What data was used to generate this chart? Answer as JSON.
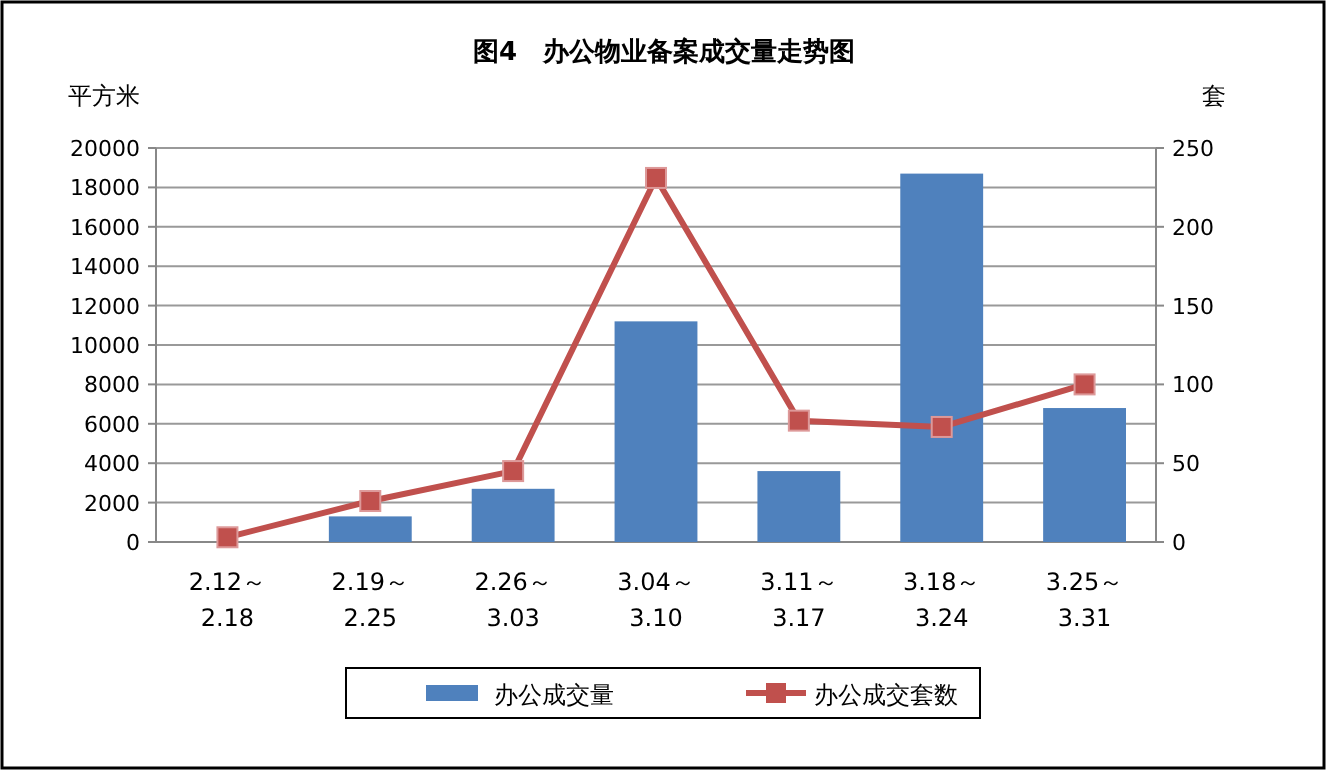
{
  "chart_data": {
    "type": "bar",
    "title": "图4　办公物业备案成交量走势图",
    "ylabel": "平方米",
    "y2label": "套",
    "categories": [
      "2.12～\n2.18",
      "2.19～\n2.25",
      "2.26～\n3.03",
      "3.04～\n3.10",
      "3.11～\n3.17",
      "3.18～\n3.24",
      "3.25～\n3.31"
    ],
    "series": [
      {
        "name": "办公成交量",
        "color": "#4f81bd",
        "values": [
          0,
          1300,
          2700,
          11200,
          3600,
          18700,
          6800
        ]
      },
      {
        "name": "办公成交套数",
        "type": "line",
        "axis": "y2",
        "color": "#c0504d",
        "marker": "square",
        "values": [
          3,
          26,
          45,
          231,
          77,
          73,
          100
        ]
      }
    ],
    "ylim": [
      0,
      20000
    ],
    "yticks": [
      0,
      2000,
      4000,
      6000,
      8000,
      10000,
      12000,
      14000,
      16000,
      18000,
      20000
    ],
    "y2lim": [
      0,
      250
    ],
    "y2ticks": [
      0,
      50,
      100,
      150,
      200,
      250
    ],
    "grid": "y",
    "legend": "bottom"
  }
}
